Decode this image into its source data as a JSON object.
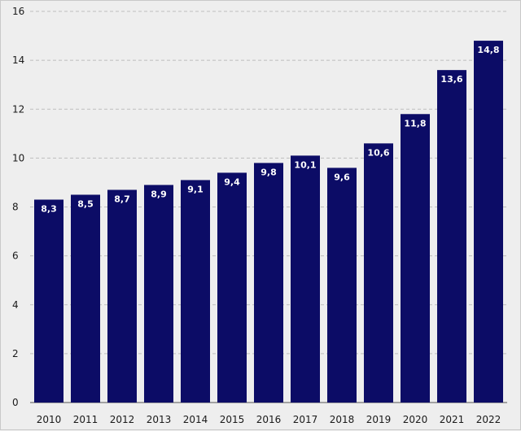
{
  "chart_data": {
    "type": "bar",
    "title": "",
    "xlabel": "",
    "ylabel": "",
    "categories": [
      "2010",
      "2011",
      "2012",
      "2013",
      "2014",
      "2015",
      "2016",
      "2017",
      "2018",
      "2019",
      "2020",
      "2021",
      "2022"
    ],
    "values": [
      8.3,
      8.5,
      8.7,
      8.9,
      9.1,
      9.4,
      9.8,
      10.1,
      9.6,
      10.6,
      11.8,
      13.6,
      14.8
    ],
    "value_labels": [
      "8,3",
      "8,5",
      "8,7",
      "8,9",
      "9,1",
      "9,4",
      "9,8",
      "10,1",
      "9,6",
      "10,6",
      "11,8",
      "13,6",
      "14,8"
    ],
    "ylim": [
      0,
      16
    ],
    "yticks": [
      0,
      2,
      4,
      6,
      8,
      10,
      12,
      14,
      16
    ],
    "grid": true,
    "legend": "none",
    "colors": {
      "bar": "#0c0c66",
      "background": "#eeeeee",
      "grid": "#bdbdbd"
    }
  }
}
